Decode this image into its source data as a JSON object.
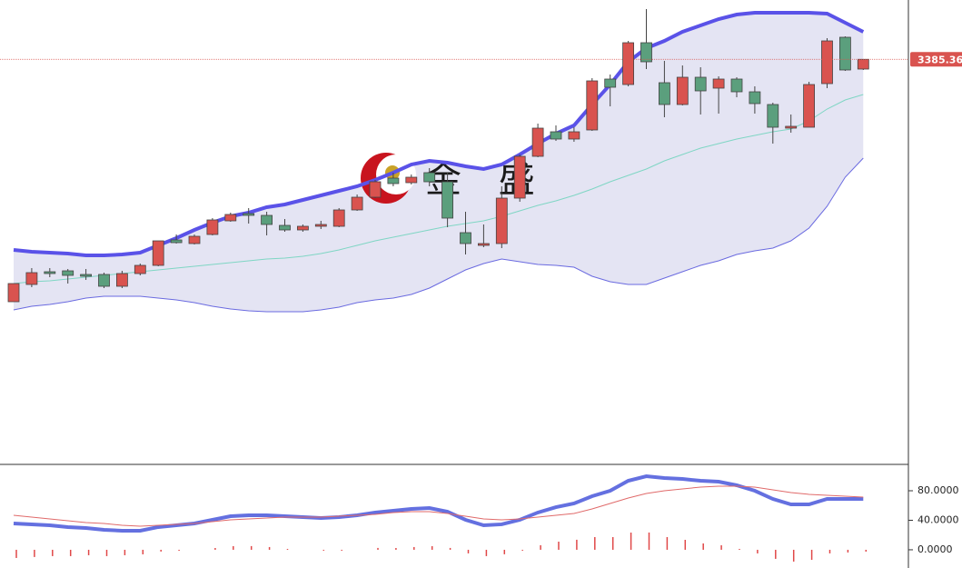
{
  "chart_data": [
    {
      "type": "candlestick",
      "watermark": "金 盛",
      "ylim": [
        3163,
        3418
      ],
      "up_color": "#d9534f",
      "down_color": "#5b9f7d",
      "open": [
        3252,
        3261.5,
        3268.5,
        3269,
        3267,
        3267,
        3260.5,
        3267.5,
        3272,
        3286,
        3284,
        3289,
        3296.5,
        3300.5,
        3299.5,
        3294,
        3291.5,
        3293.5,
        3293.5,
        3302.5,
        3309.5,
        3320,
        3317.5,
        3323,
        3318,
        3290,
        3283,
        3284,
        3309,
        3332,
        3345.5,
        3341.5,
        3346.5,
        3374.5,
        3371.5,
        3394.5,
        3372.5,
        3360.5,
        3375.5,
        3369.5,
        3374.5,
        3367.5,
        3360.5,
        3347.5,
        3348,
        3372,
        3397.5,
        3380
      ],
      "high": [
        3262,
        3270.5,
        3270.5,
        3270,
        3270,
        3268,
        3269,
        3273,
        3285.5,
        3289,
        3289,
        3298,
        3301,
        3303.5,
        3301.5,
        3297.5,
        3294.5,
        3296.5,
        3303.5,
        3311,
        3319,
        3323,
        3322,
        3325.5,
        3323,
        3301.5,
        3294.5,
        3315.5,
        3333,
        3350,
        3349,
        3348,
        3375,
        3377,
        3395.5,
        3413,
        3384.5,
        3382,
        3381,
        3376,
        3375.5,
        3370.5,
        3361.5,
        3355,
        3373,
        3397,
        3398,
        3385.5
      ],
      "low": [
        3252,
        3260,
        3265.5,
        3262,
        3264,
        3259.5,
        3259.5,
        3266.5,
        3271.5,
        3284,
        3283.5,
        3288.5,
        3296,
        3295,
        3288.5,
        3290.5,
        3290.5,
        3292,
        3293,
        3302,
        3309,
        3315.5,
        3316.5,
        3315.5,
        3293,
        3278,
        3282,
        3281.5,
        3307,
        3331.5,
        3340.5,
        3340,
        3346,
        3359.5,
        3370.5,
        3380,
        3353.5,
        3360,
        3355,
        3355.5,
        3364.5,
        3355.5,
        3339,
        3345,
        3348,
        3369.5,
        3379,
        3379.5
      ],
      "close": [
        3262,
        3268,
        3267.5,
        3266.5,
        3266,
        3260.5,
        3267.5,
        3272,
        3285.5,
        3284.5,
        3288,
        3297,
        3300,
        3299.5,
        3294.5,
        3291.5,
        3293.5,
        3294.5,
        3302.5,
        3309.5,
        3318,
        3317,
        3320.5,
        3318,
        3298,
        3284,
        3284,
        3309,
        3332,
        3347.5,
        3341.5,
        3345.5,
        3373.5,
        3370,
        3394.5,
        3384,
        3360.5,
        3375.5,
        3368,
        3374.5,
        3367.5,
        3361,
        3348,
        3348.5,
        3371.5,
        3395.5,
        3379.5,
        3385.36
      ],
      "last_price": {
        "value": 3385.36,
        "label": "3385.360"
      },
      "last_price_color": "#d9534f",
      "series": [
        {
          "color": "#5a52e8",
          "values": [
            3280.5,
            3279.5,
            3279,
            3278.5,
            3277.5,
            3277.5,
            3278,
            3279,
            3283,
            3287,
            3291.5,
            3295.5,
            3299,
            3301,
            3304,
            3305.5,
            3308,
            3310.5,
            3313,
            3315.5,
            3319,
            3323,
            3327.5,
            3329.5,
            3328.5,
            3326.5,
            3325,
            3327.5,
            3333,
            3339,
            3344.5,
            3349,
            3360.5,
            3371.5,
            3384,
            3391.5,
            3395.5,
            3400.5,
            3404,
            3407.5,
            3410,
            3411,
            3411,
            3411,
            3411,
            3410.5,
            3405.5,
            3400.5
          ]
        },
        {
          "color": "#7fd6c4",
          "values": [
            3262,
            3263,
            3263.5,
            3264.5,
            3265.5,
            3266.5,
            3267.5,
            3268.5,
            3269.5,
            3270.5,
            3271.5,
            3272.5,
            3273.5,
            3274.5,
            3275.5,
            3276,
            3277,
            3278.5,
            3280.5,
            3283,
            3285.5,
            3287.5,
            3289.5,
            3291.5,
            3293.5,
            3295,
            3296.5,
            3299,
            3302,
            3305,
            3307.5,
            3310.5,
            3314,
            3318,
            3321.5,
            3325,
            3329.5,
            3333,
            3336.5,
            3339,
            3341.5,
            3343.5,
            3345.5,
            3347,
            3351.5,
            3358,
            3363,
            3366
          ]
        },
        {
          "color": "#6a6ae0",
          "values": [
            3247.5,
            3249.5,
            3250.5,
            3252,
            3254,
            3255,
            3255,
            3255,
            3254,
            3253,
            3251.5,
            3249.5,
            3248,
            3247,
            3246.5,
            3246.5,
            3246.5,
            3247.5,
            3249,
            3251.5,
            3253,
            3254,
            3256,
            3259.5,
            3264.5,
            3269.5,
            3273,
            3275.5,
            3274,
            3272.5,
            3272,
            3271,
            3266,
            3263,
            3261.5,
            3261.5,
            3265,
            3268.5,
            3272,
            3274.5,
            3278,
            3280,
            3281.5,
            3285.5,
            3292.5,
            3304.5,
            3320.5,
            3331
          ]
        }
      ],
      "band_fill": "#e4e4f3"
    },
    {
      "type": "line",
      "ylim": [
        -21,
        114.5
      ],
      "yticks": [
        {
          "value": 80,
          "label": "80.0000"
        },
        {
          "value": 40,
          "label": "40.0000"
        },
        {
          "value": 0,
          "label": "0.0000"
        }
      ],
      "series": [
        {
          "color": "#6470e0",
          "values": [
            35.7,
            34.5,
            33.2,
            30.8,
            29.5,
            27.1,
            25.8,
            25.8,
            30.8,
            33.2,
            35.7,
            40.6,
            45.5,
            46.8,
            46.8,
            45.5,
            44.3,
            43.1,
            44.3,
            46.8,
            50.5,
            52.9,
            55.4,
            56.6,
            51.7,
            40.6,
            33.2,
            34.5,
            40.6,
            50.5,
            57.8,
            62.8,
            72.6,
            80,
            93.5,
            99.7,
            97.2,
            96,
            93.5,
            92.3,
            87.4,
            80,
            68.9,
            61.5,
            61.5,
            68.9,
            68.9,
            68.9
          ]
        },
        {
          "color": "#e06a6a",
          "values": [
            46.8,
            44.3,
            41.8,
            39.4,
            36.9,
            35.7,
            33.2,
            32,
            33.2,
            34.5,
            35.7,
            38.2,
            40.6,
            41.8,
            43.1,
            44.3,
            44.3,
            44.3,
            45.5,
            46.8,
            48,
            50.5,
            51.7,
            51.7,
            49.2,
            45.5,
            41.8,
            40.6,
            41.8,
            44.3,
            46.8,
            49.2,
            55.4,
            62.8,
            70.2,
            76.3,
            80,
            82.5,
            84.9,
            86.2,
            86.2,
            84.9,
            81.2,
            77.5,
            75.1,
            73.8,
            72.6,
            71.4
          ]
        }
      ],
      "histogram": {
        "color": "#e04848",
        "values": [
          -11.1,
          -9.8,
          -8.6,
          -8.6,
          -7.4,
          -8.6,
          -7.4,
          -6.2,
          -2.4,
          -1.3,
          0,
          2.4,
          4.9,
          5,
          3.7,
          1.2,
          0,
          -1.2,
          -1.2,
          0,
          2.5,
          2.4,
          3.7,
          4.9,
          2.5,
          -4.9,
          -8.6,
          -6.1,
          -1.2,
          6.2,
          11,
          13.6,
          17.2,
          17.2,
          23.3,
          23.4,
          17.2,
          13.5,
          8.6,
          6.1,
          1.2,
          -4.9,
          -12.3,
          -16,
          -13.6,
          -4.9,
          -3.7,
          -2.5
        ]
      }
    }
  ]
}
